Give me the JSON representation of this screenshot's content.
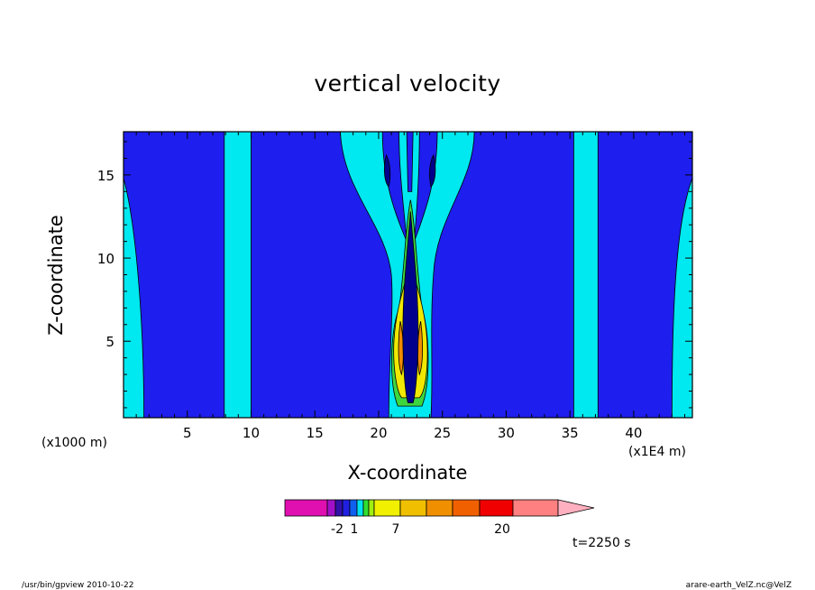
{
  "chart_data": {
    "type": "heatmap",
    "title": "vertical velocity",
    "xlabel": "X-coordinate",
    "ylabel": "Z-coordinate",
    "x_unit_left": "(x1000 m)",
    "x_unit_right": "(x1E4 m)",
    "xlim": [
      0,
      44.6
    ],
    "ylim": [
      0.4,
      17.6
    ],
    "x_ticks": [
      5,
      10,
      15,
      20,
      25,
      30,
      35,
      40
    ],
    "y_ticks": [
      5,
      10,
      15
    ],
    "colorbar_tick_labels": [
      "-2",
      "1",
      "7",
      "20"
    ],
    "colorbar_colors": [
      "#e010b0",
      "#a010c8",
      "#3010a8",
      "#2020e0",
      "#1060f0",
      "#00e0f0",
      "#30e030",
      "#a0f010",
      "#f0f000",
      "#f0c000",
      "#f09000",
      "#f06000",
      "#f00000",
      "#ff8080",
      "#ffb0c0"
    ],
    "color_levels": {
      "strong_down": "#00008c",
      "down": "#1e1eee",
      "weak": "#00e8f0",
      "mild_up": "#3ed63e",
      "up": "#f0e800",
      "strong_up": "#f08c00"
    },
    "time_label": "t=2250 s",
    "footer_left": "/usr/bin/gpview   2010-10-22",
    "footer_right": "arare-earth_VelZ.nc@VelZ"
  }
}
